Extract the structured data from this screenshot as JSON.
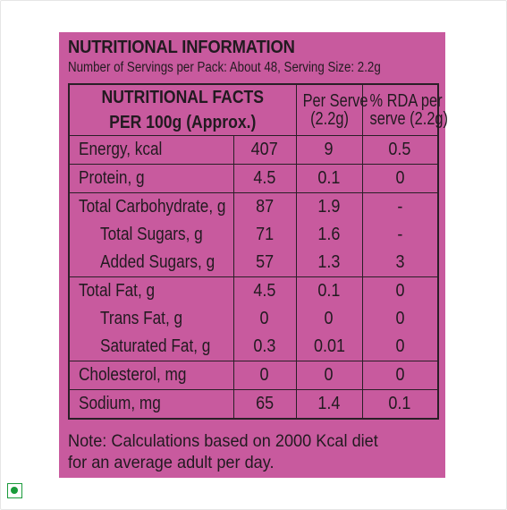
{
  "label": {
    "title": "NUTRITIONAL INFORMATION",
    "subtitle": "Number of Servings per Pack: About 48, Serving Size: 2.2g",
    "header": {
      "main_line1": "NUTRITIONAL FACTS",
      "main_line2": "PER 100g (Approx.)",
      "per_serve_line1": "Per Serve",
      "per_serve_line2": "(2.2g)",
      "rda_line1": "% RDA per",
      "rda_line2": "serve (2.2g)"
    },
    "rows": [
      {
        "name": "Energy, kcal",
        "per100": "407",
        "serve": "9",
        "rda": "0.5"
      },
      {
        "name": "Protein, g",
        "per100": "4.5",
        "serve": "0.1",
        "rda": "0"
      },
      {
        "name": "Total Carbohydrate, g",
        "per100": "87",
        "serve": "1.9",
        "rda": "-"
      },
      {
        "name": "Total Sugars, g",
        "per100": "71",
        "serve": "1.6",
        "rda": "-"
      },
      {
        "name": "Added Sugars, g",
        "per100": "57",
        "serve": "1.3",
        "rda": "3"
      },
      {
        "name": "Total Fat, g",
        "per100": "4.5",
        "serve": "0.1",
        "rda": "0"
      },
      {
        "name": "Trans Fat, g",
        "per100": "0",
        "serve": "0",
        "rda": "0"
      },
      {
        "name": "Saturated Fat, g",
        "per100": "0.3",
        "serve": "0.01",
        "rda": "0"
      },
      {
        "name": "Cholesterol, mg",
        "per100": "0",
        "serve": "0",
        "rda": "0"
      },
      {
        "name": "Sodium, mg",
        "per100": "65",
        "serve": "1.4",
        "rda": "0.1"
      }
    ],
    "note_line1": "Note: Calculations based on 2000 Kcal diet",
    "note_line2": "for an average adult per day."
  },
  "colors": {
    "label_background": "#c85a9e",
    "veg_mark": "#1a9b3b"
  },
  "icons": {
    "veg_mark": "vegetarian-mark-icon"
  }
}
